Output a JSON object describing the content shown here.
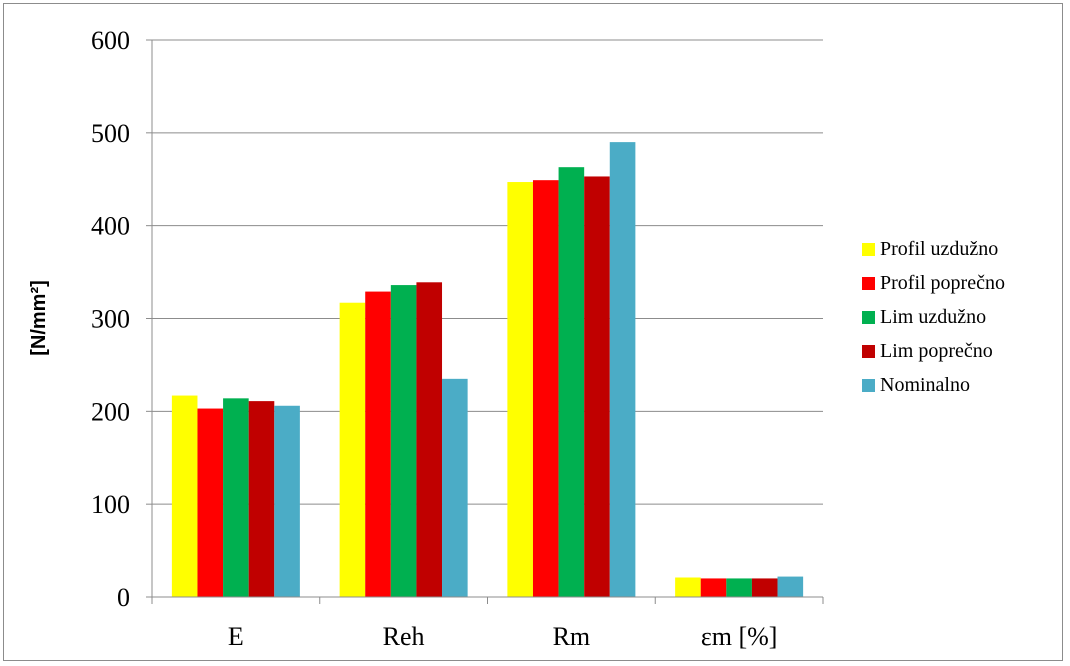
{
  "chart_data": {
    "type": "bar",
    "title": "",
    "xlabel": "",
    "ylabel": "[N/mm²]",
    "ylim": [
      0,
      600
    ],
    "yticks": [
      0,
      100,
      200,
      300,
      400,
      500,
      600
    ],
    "grid": true,
    "legend_position": "right",
    "categories": [
      "E",
      "Reh",
      "Rm",
      "εm [%]"
    ],
    "series": [
      {
        "name": "Profil uzdužno",
        "color": "#FFFF00",
        "values": [
          217,
          317,
          447,
          21
        ]
      },
      {
        "name": "Profil poprečno",
        "color": "#FF0000",
        "values": [
          203,
          329,
          449,
          20
        ]
      },
      {
        "name": "Lim uzdužno",
        "color": "#00B050",
        "values": [
          214,
          336,
          463,
          20
        ]
      },
      {
        "name": "Lim poprečno",
        "color": "#C00000",
        "values": [
          211,
          339,
          453,
          20
        ]
      },
      {
        "name": "Nominalno",
        "color": "#4BACC6",
        "values": [
          206,
          235,
          490,
          22
        ]
      }
    ]
  }
}
